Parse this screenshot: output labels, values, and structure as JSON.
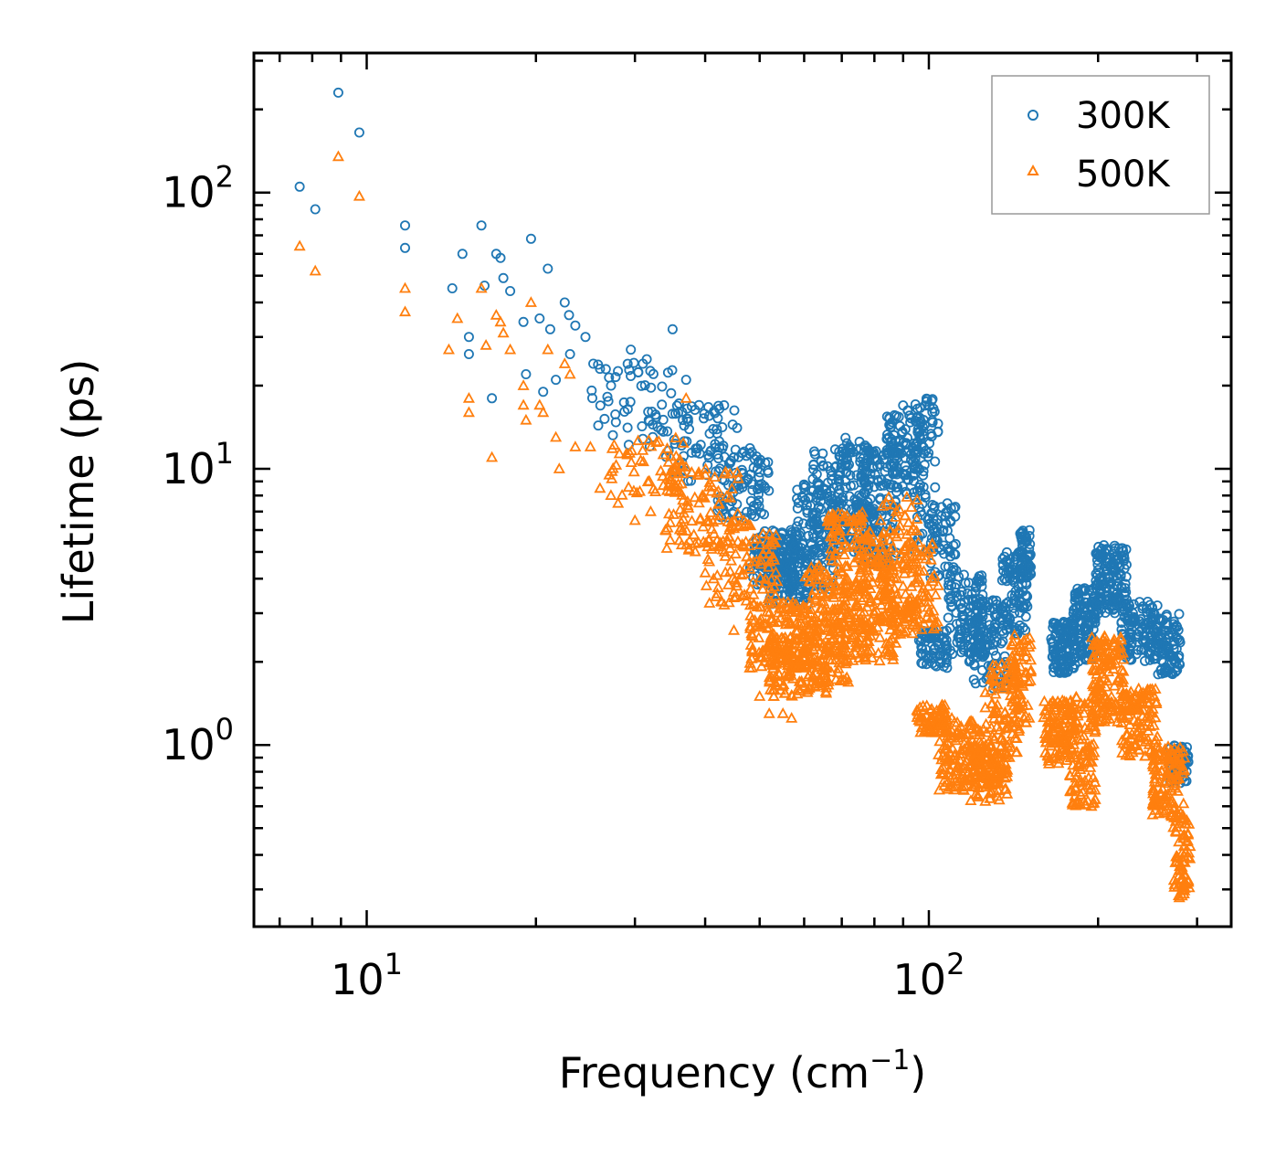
{
  "chart_data": {
    "type": "scatter",
    "xscale": "log",
    "yscale": "log",
    "xlim": [
      6.3,
      345
    ],
    "ylim": [
      0.22,
      320
    ],
    "xlabel_main": "Frequency (cm",
    "xlabel_sup": "−1",
    "xlabel_end": ")",
    "ylabel": "Lifetime (ps)",
    "xticks": [
      {
        "value": 10,
        "base": "10",
        "exp": "1"
      },
      {
        "value": 100,
        "base": "10",
        "exp": "2"
      }
    ],
    "yticks": [
      {
        "value": 1,
        "base": "10",
        "exp": "0"
      },
      {
        "value": 10,
        "base": "10",
        "exp": "1"
      },
      {
        "value": 100,
        "base": "10",
        "exp": "2"
      }
    ],
    "legend_position": "top-right",
    "series": [
      {
        "name": "300K",
        "marker": "circle",
        "color": "#1f77b4",
        "explicit_points": [
          [
            7.6,
            105
          ],
          [
            8.9,
            230
          ],
          [
            9.7,
            165
          ],
          [
            8.1,
            87
          ],
          [
            11.7,
            76
          ],
          [
            11.7,
            63
          ],
          [
            14.2,
            45
          ],
          [
            14.8,
            60
          ],
          [
            15.2,
            30
          ],
          [
            15.2,
            26
          ],
          [
            16.0,
            76
          ],
          [
            16.2,
            46
          ],
          [
            16.7,
            18
          ],
          [
            17.0,
            60
          ],
          [
            17.3,
            58
          ],
          [
            17.5,
            49
          ],
          [
            18.0,
            44
          ],
          [
            19.0,
            34
          ],
          [
            19.6,
            68
          ],
          [
            20.3,
            35
          ],
          [
            21.0,
            53
          ],
          [
            21.2,
            32
          ],
          [
            19.2,
            22
          ],
          [
            22.5,
            40
          ],
          [
            22.9,
            36
          ],
          [
            23.5,
            33
          ],
          [
            24.5,
            30
          ],
          [
            26.0,
            23
          ],
          [
            27.2,
            20
          ],
          [
            29.5,
            27
          ],
          [
            31.0,
            24
          ],
          [
            35.0,
            32
          ],
          [
            37.0,
            21
          ],
          [
            39.0,
            17
          ],
          [
            20.6,
            19
          ],
          [
            21.7,
            21
          ],
          [
            23.0,
            26
          ],
          [
            25.3,
            24
          ]
        ],
        "clusters": [
          {
            "x": [
              25,
              36
            ],
            "y": [
              12,
              25
            ],
            "n": 55
          },
          {
            "x": [
              34,
              46
            ],
            "y": [
              9,
              17
            ],
            "n": 70
          },
          {
            "x": [
              42,
              52
            ],
            "y": [
              6.5,
              12
            ],
            "n": 90
          },
          {
            "x": [
              48,
              58
            ],
            "y": [
              3.8,
              6
            ],
            "n": 130
          },
          {
            "x": [
              52,
              62
            ],
            "y": [
              3.2,
              5.5
            ],
            "n": 110
          },
          {
            "x": [
              58,
              68
            ],
            "y": [
              3.5,
              9
            ],
            "n": 120
          },
          {
            "x": [
              62,
              72
            ],
            "y": [
              6,
              12
            ],
            "n": 70
          },
          {
            "x": [
              68,
              80
            ],
            "y": [
              5,
              13
            ],
            "n": 140
          },
          {
            "x": [
              75,
              88
            ],
            "y": [
              4.5,
              12
            ],
            "n": 120
          },
          {
            "x": [
              84,
              98
            ],
            "y": [
              8,
              17
            ],
            "n": 110
          },
          {
            "x": [
              94,
              104
            ],
            "y": [
              5,
              18
            ],
            "n": 70
          },
          {
            "x": [
              100,
              112
            ],
            "y": [
              4,
              7.5
            ],
            "n": 60
          },
          {
            "x": [
              96,
              108
            ],
            "y": [
              1.9,
              2.6
            ],
            "n": 70
          },
          {
            "x": [
              108,
              125
            ],
            "y": [
              2.0,
              4.2
            ],
            "n": 120
          },
          {
            "x": [
              120,
              138
            ],
            "y": [
              1.6,
              3.4
            ],
            "n": 110
          },
          {
            "x": [
              135,
              150
            ],
            "y": [
              2.5,
              5.0
            ],
            "n": 90
          },
          {
            "x": [
              145,
              152
            ],
            "y": [
              3.8,
              6.0
            ],
            "n": 60
          },
          {
            "x": [
              165,
              182
            ],
            "y": [
              1.8,
              2.8
            ],
            "n": 120
          },
          {
            "x": [
              180,
              198
            ],
            "y": [
              2.0,
              3.7
            ],
            "n": 120
          },
          {
            "x": [
              198,
              225
            ],
            "y": [
              3.0,
              5.3
            ],
            "n": 150
          },
          {
            "x": [
              220,
              255
            ],
            "y": [
              2.0,
              3.3
            ],
            "n": 120
          },
          {
            "x": [
              255,
              280
            ],
            "y": [
              1.8,
              3.0
            ],
            "n": 90
          },
          {
            "x": [
              268,
              290
            ],
            "y": [
              0.72,
              1.0
            ],
            "n": 80
          }
        ]
      },
      {
        "name": "500K",
        "marker": "triangle",
        "color": "#ff7f0e",
        "explicit_points": [
          [
            7.6,
            64
          ],
          [
            8.1,
            52
          ],
          [
            8.9,
            135
          ],
          [
            9.7,
            97
          ],
          [
            11.7,
            45
          ],
          [
            11.7,
            37
          ],
          [
            14.0,
            27
          ],
          [
            14.5,
            35
          ],
          [
            15.2,
            18
          ],
          [
            15.2,
            16
          ],
          [
            16.0,
            45
          ],
          [
            16.3,
            28
          ],
          [
            16.7,
            11
          ],
          [
            17.0,
            36
          ],
          [
            17.3,
            34
          ],
          [
            17.5,
            31
          ],
          [
            18.0,
            27
          ],
          [
            19.0,
            20
          ],
          [
            19.0,
            17
          ],
          [
            19.2,
            15
          ],
          [
            19.6,
            40
          ],
          [
            20.3,
            17
          ],
          [
            20.6,
            16
          ],
          [
            21.0,
            27
          ],
          [
            21.7,
            13
          ],
          [
            22.0,
            10
          ],
          [
            22.5,
            24
          ],
          [
            23.0,
            22
          ],
          [
            23.5,
            12
          ],
          [
            25.0,
            12
          ],
          [
            26.0,
            8.5
          ],
          [
            27.0,
            9.5
          ],
          [
            28.0,
            7.5
          ],
          [
            30.0,
            6.5
          ],
          [
            32.0,
            7
          ],
          [
            34.0,
            6
          ],
          [
            37.0,
            18
          ],
          [
            36.0,
            5.5
          ],
          [
            40.0,
            4.2
          ],
          [
            42.0,
            5.5
          ],
          [
            44.0,
            3.8
          ],
          [
            45.0,
            2.6
          ],
          [
            48.0,
            1.9
          ],
          [
            50.0,
            1.5
          ],
          [
            52.0,
            1.3
          ],
          [
            53.0,
            1.5
          ],
          [
            55.0,
            1.3
          ],
          [
            57.0,
            1.25
          ]
        ],
        "clusters": [
          {
            "x": [
              27,
              37
            ],
            "y": [
              8,
              13
            ],
            "n": 60
          },
          {
            "x": [
              34,
              46
            ],
            "y": [
              5,
              10
            ],
            "n": 90
          },
          {
            "x": [
              40,
              54
            ],
            "y": [
              3.2,
              6.5
            ],
            "n": 110
          },
          {
            "x": [
              48,
              62
            ],
            "y": [
              1.9,
              3.3
            ],
            "n": 160
          },
          {
            "x": [
              52,
              66
            ],
            "y": [
              1.5,
              2.5
            ],
            "n": 130
          },
          {
            "x": [
              60,
              72
            ],
            "y": [
              1.6,
              4.5
            ],
            "n": 150
          },
          {
            "x": [
              66,
              78
            ],
            "y": [
              2.0,
              7.0
            ],
            "n": 150
          },
          {
            "x": [
              74,
              88
            ],
            "y": [
              2.0,
              6.0
            ],
            "n": 150
          },
          {
            "x": [
              82,
              96
            ],
            "y": [
              2.5,
              8.0
            ],
            "n": 110
          },
          {
            "x": [
              90,
              104
            ],
            "y": [
              2.6,
              5.5
            ],
            "n": 80
          },
          {
            "x": [
              95,
              108
            ],
            "y": [
              1.1,
              1.4
            ],
            "n": 70
          },
          {
            "x": [
              104,
              125
            ],
            "y": [
              0.68,
              1.25
            ],
            "n": 150
          },
          {
            "x": [
              118,
              138
            ],
            "y": [
              0.62,
              1.0
            ],
            "n": 120
          },
          {
            "x": [
              125,
              145
            ],
            "y": [
              0.9,
              2.0
            ],
            "n": 100
          },
          {
            "x": [
              140,
              152
            ],
            "y": [
              1.2,
              2.5
            ],
            "n": 70
          },
          {
            "x": [
              160,
              182
            ],
            "y": [
              0.85,
              1.45
            ],
            "n": 120
          },
          {
            "x": [
              178,
              198
            ],
            "y": [
              0.6,
              1.5
            ],
            "n": 120
          },
          {
            "x": [
              195,
              222
            ],
            "y": [
              1.2,
              2.5
            ],
            "n": 140
          },
          {
            "x": [
              220,
              255
            ],
            "y": [
              0.9,
              1.6
            ],
            "n": 120
          },
          {
            "x": [
              250,
              285
            ],
            "y": [
              0.55,
              1.0
            ],
            "n": 120
          },
          {
            "x": [
              272,
              292
            ],
            "y": [
              0.28,
              0.55
            ],
            "n": 70
          }
        ]
      }
    ]
  }
}
